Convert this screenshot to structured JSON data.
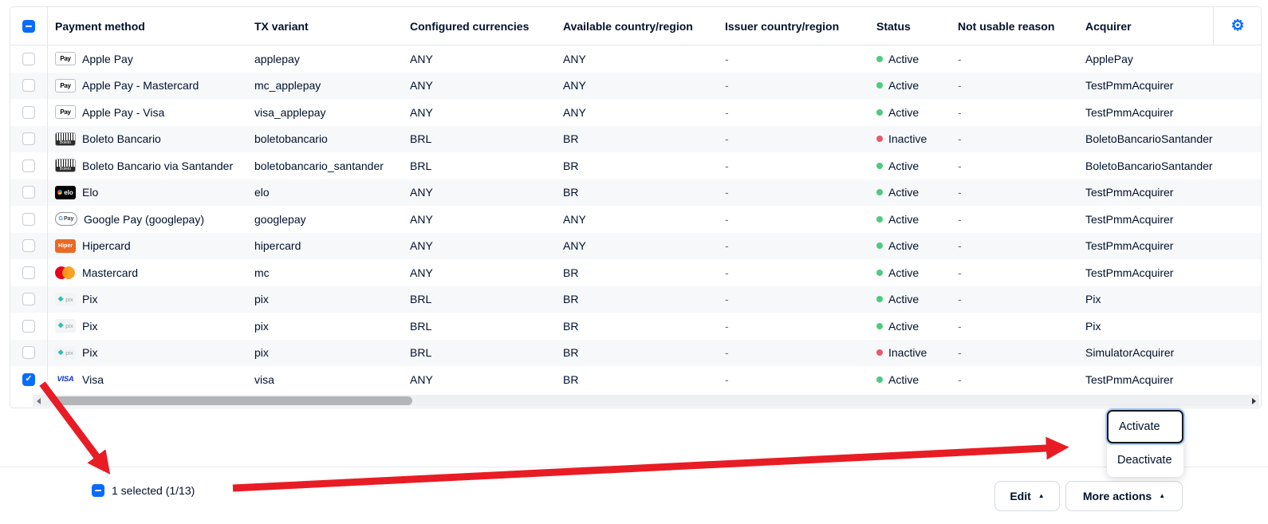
{
  "colors": {
    "accent_blue": "#0a6cff",
    "status_active_green": "#4ecb7d",
    "status_inactive_red": "#e8596b",
    "annotation_arrow_red": "#e81c24"
  },
  "table": {
    "select_all_state": "indeterminate",
    "columns": [
      {
        "key": "payment_method",
        "label": "Payment method"
      },
      {
        "key": "tx_variant",
        "label": "TX variant"
      },
      {
        "key": "configured_currencies",
        "label": "Configured currencies"
      },
      {
        "key": "available_country",
        "label": "Available country/region"
      },
      {
        "key": "issuer_country",
        "label": "Issuer country/region"
      },
      {
        "key": "status",
        "label": "Status"
      },
      {
        "key": "not_usable_reason",
        "label": "Not usable reason"
      },
      {
        "key": "acquirer",
        "label": "Acquirer"
      }
    ],
    "rows": [
      {
        "icon": "applepay",
        "payment_method": "Apple Pay",
        "tx_variant": "applepay",
        "configured_currencies": "ANY",
        "available_country": "ANY",
        "issuer_country": "-",
        "status": "Active",
        "not_usable_reason": "-",
        "acquirer": "ApplePay",
        "selected": false
      },
      {
        "icon": "applepay",
        "payment_method": "Apple Pay - Mastercard",
        "tx_variant": "mc_applepay",
        "configured_currencies": "ANY",
        "available_country": "ANY",
        "issuer_country": "-",
        "status": "Active",
        "not_usable_reason": "-",
        "acquirer": "TestPmmAcquirer",
        "selected": false
      },
      {
        "icon": "applepay",
        "payment_method": "Apple Pay - Visa",
        "tx_variant": "visa_applepay",
        "configured_currencies": "ANY",
        "available_country": "ANY",
        "issuer_country": "-",
        "status": "Active",
        "not_usable_reason": "-",
        "acquirer": "TestPmmAcquirer",
        "selected": false
      },
      {
        "icon": "boleto",
        "payment_method": "Boleto Bancario",
        "tx_variant": "boletobancario",
        "configured_currencies": "BRL",
        "available_country": "BR",
        "issuer_country": "-",
        "status": "Inactive",
        "not_usable_reason": "-",
        "acquirer": "BoletoBancarioSantander",
        "selected": false
      },
      {
        "icon": "boleto",
        "payment_method": "Boleto Bancario via Santander",
        "tx_variant": "boletobancario_santander",
        "configured_currencies": "BRL",
        "available_country": "BR",
        "issuer_country": "-",
        "status": "Active",
        "not_usable_reason": "-",
        "acquirer": "BoletoBancarioSantander",
        "selected": false
      },
      {
        "icon": "elo",
        "payment_method": "Elo",
        "tx_variant": "elo",
        "configured_currencies": "ANY",
        "available_country": "BR",
        "issuer_country": "-",
        "status": "Active",
        "not_usable_reason": "-",
        "acquirer": "TestPmmAcquirer",
        "selected": false
      },
      {
        "icon": "gpay",
        "payment_method": "Google Pay (googlepay)",
        "tx_variant": "googlepay",
        "configured_currencies": "ANY",
        "available_country": "ANY",
        "issuer_country": "-",
        "status": "Active",
        "not_usable_reason": "-",
        "acquirer": "TestPmmAcquirer",
        "selected": false
      },
      {
        "icon": "hiper",
        "payment_method": "Hipercard",
        "tx_variant": "hipercard",
        "configured_currencies": "ANY",
        "available_country": "ANY",
        "issuer_country": "-",
        "status": "Active",
        "not_usable_reason": "-",
        "acquirer": "TestPmmAcquirer",
        "selected": false
      },
      {
        "icon": "mc",
        "payment_method": "Mastercard",
        "tx_variant": "mc",
        "configured_currencies": "ANY",
        "available_country": "BR",
        "issuer_country": "-",
        "status": "Active",
        "not_usable_reason": "-",
        "acquirer": "TestPmmAcquirer",
        "selected": false
      },
      {
        "icon": "pix",
        "payment_method": "Pix",
        "tx_variant": "pix",
        "configured_currencies": "BRL",
        "available_country": "BR",
        "issuer_country": "-",
        "status": "Active",
        "not_usable_reason": "-",
        "acquirer": "Pix",
        "selected": false
      },
      {
        "icon": "pix",
        "payment_method": "Pix",
        "tx_variant": "pix",
        "configured_currencies": "BRL",
        "available_country": "BR",
        "issuer_country": "-",
        "status": "Active",
        "not_usable_reason": "-",
        "acquirer": "Pix",
        "selected": false
      },
      {
        "icon": "pix",
        "payment_method": "Pix",
        "tx_variant": "pix",
        "configured_currencies": "BRL",
        "available_country": "BR",
        "issuer_country": "-",
        "status": "Inactive",
        "not_usable_reason": "-",
        "acquirer": "SimulatorAcquirer",
        "selected": false
      },
      {
        "icon": "visa",
        "payment_method": "Visa",
        "tx_variant": "visa",
        "configured_currencies": "ANY",
        "available_country": "BR",
        "issuer_country": "-",
        "status": "Active",
        "not_usable_reason": "-",
        "acquirer": "TestPmmAcquirer",
        "selected": true
      }
    ]
  },
  "icon_labels": {
    "applepay": "Pay",
    "boleto": "Boleto",
    "elo": "elo",
    "gpay_g": "G",
    "gpay_pay": "Pay",
    "hiper": "Hiper",
    "pix": "pix",
    "visa": "VISA"
  },
  "dropdown": {
    "items": [
      {
        "label": "Activate",
        "focused": true
      },
      {
        "label": "Deactivate",
        "focused": false
      }
    ]
  },
  "footer": {
    "selection_summary": "1 selected (1/13)",
    "edit_button": "Edit",
    "more_actions_button": "More actions"
  }
}
